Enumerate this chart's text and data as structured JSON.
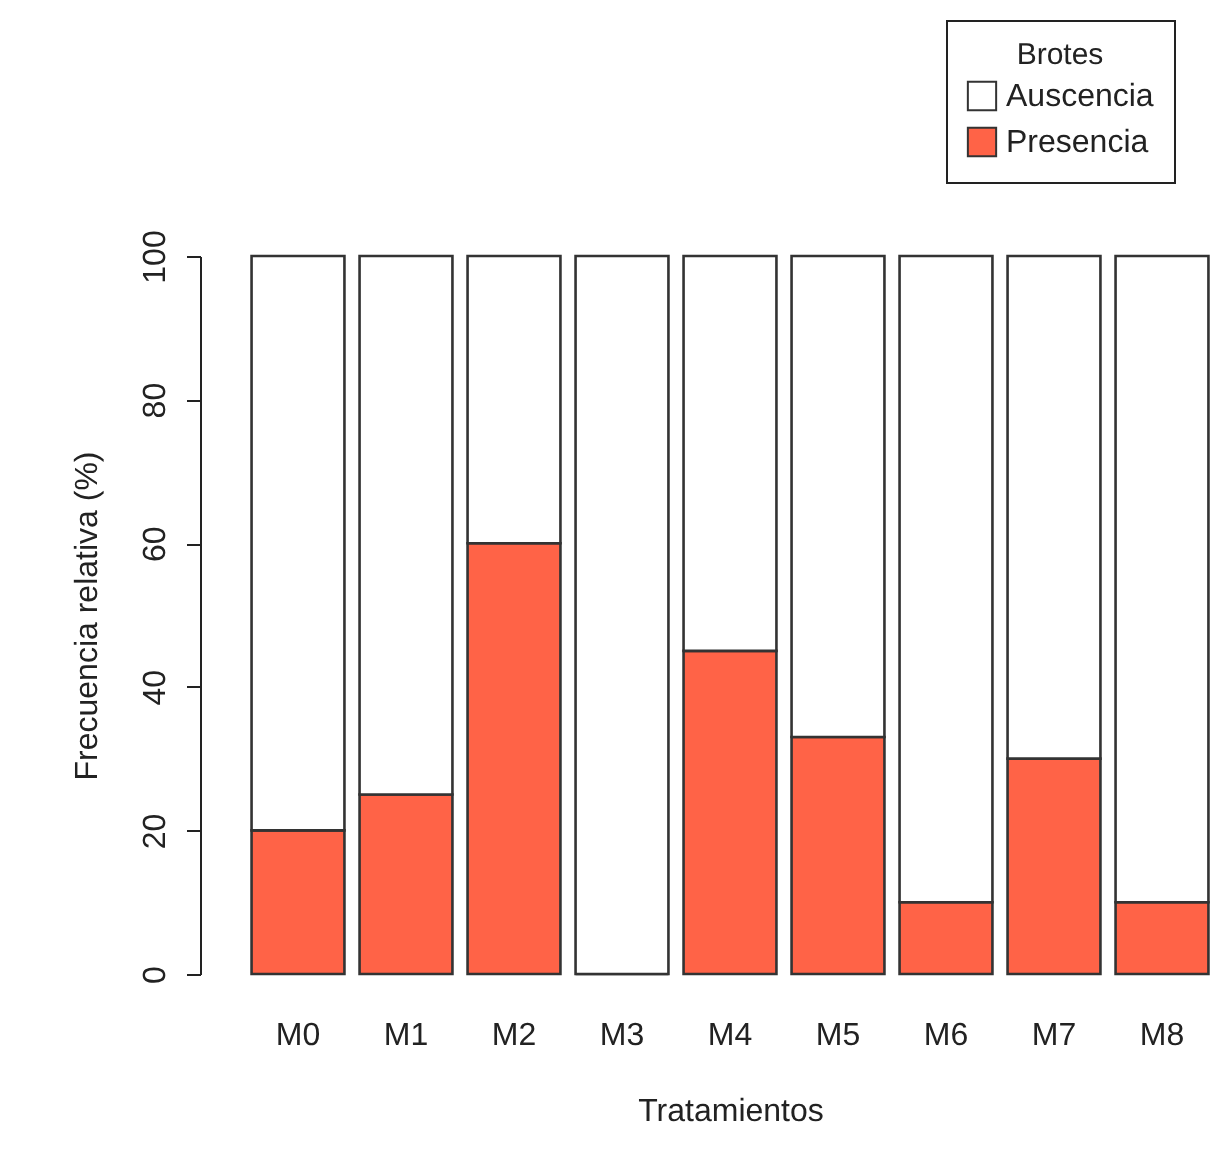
{
  "chart_data": {
    "type": "bar",
    "stacked": true,
    "xlabel": "Tratamientos",
    "ylabel": "Frecuencia relativa (%)",
    "legend_title": "Brotes",
    "legend": "top right",
    "grid": false,
    "categories": [
      "M0",
      "M1",
      "M2",
      "M3",
      "M4",
      "M5",
      "M6",
      "M7",
      "M8"
    ],
    "ylim": [
      0,
      100
    ],
    "yticks": [
      0,
      20,
      40,
      60,
      80,
      100
    ],
    "series": [
      {
        "name": "Presencia",
        "color": "#ff6347",
        "values": [
          20,
          25,
          60,
          0,
          45,
          33,
          10,
          30,
          10
        ]
      },
      {
        "name": "Auscencia",
        "color": "#ffffff",
        "values": [
          80,
          75,
          40,
          100,
          55,
          67,
          90,
          70,
          90
        ]
      }
    ]
  }
}
